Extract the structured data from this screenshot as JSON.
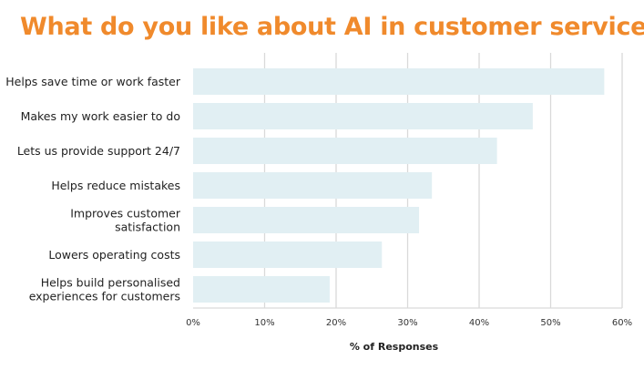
{
  "title": "What do you like about AI in customer service?",
  "chart_data": {
    "type": "bar",
    "orientation": "horizontal",
    "title": "What do you like about AI in customer service?",
    "xlabel": "% of Responses",
    "ylabel": "",
    "categories": [
      [
        "Helps save time or work faster"
      ],
      [
        "Makes my work easier to do"
      ],
      [
        "Lets us provide support 24/7"
      ],
      [
        "Helps reduce mistakes"
      ],
      [
        "Improves customer",
        "satisfaction"
      ],
      [
        "Lowers operating costs"
      ],
      [
        "Helps build personalised",
        "experiences for customers"
      ]
    ],
    "values": [
      57.5,
      47.5,
      42.5,
      33.4,
      31.6,
      26.4,
      19.1
    ],
    "xlim": [
      0,
      60
    ],
    "xticks": [
      "0%",
      "10%",
      "20%",
      "30%",
      "40%",
      "50%",
      "60%"
    ],
    "grid": true,
    "colors": {
      "bar": "#e1eff3",
      "grid": "#d9d9d9",
      "title": "#f08a2c"
    }
  }
}
